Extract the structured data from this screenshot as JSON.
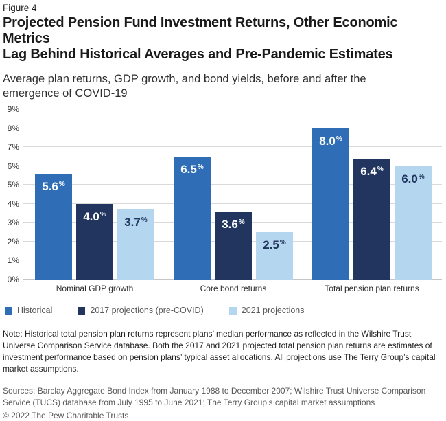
{
  "figure_label": "Figure 4",
  "header": {
    "title_lines": [
      "Projected Pension Fund Investment Returns, Other Economic Metrics",
      "Lag Behind Historical Averages and Pre-Pandemic Estimates"
    ],
    "subtitle_lines": [
      "Average plan returns, GDP growth, and bond yields, before and after the",
      "emergence of COVID-19"
    ]
  },
  "chart_data": {
    "type": "bar",
    "title": "Projected Pension Fund Investment Returns, Other Economic Metrics Lag Behind Historical Averages and Pre-Pandemic Estimates",
    "subtitle": "Average plan returns, GDP growth, and bond yields, before and after the emergence of COVID-19",
    "categories": [
      "Nominal GDP growth",
      "Core bond returns",
      "Total pension plan returns"
    ],
    "series": [
      {
        "name": "Historical",
        "color": "#2f6eb6",
        "label_color": "#ffffff",
        "values": [
          5.6,
          6.5,
          8.0
        ]
      },
      {
        "name": "2017 projections (pre-COVID)",
        "color": "#21355f",
        "label_color": "#ffffff",
        "values": [
          4.0,
          3.6,
          6.4
        ]
      },
      {
        "name": "2021 projections",
        "color": "#b5d6ef",
        "label_color": "#21355f",
        "values": [
          3.7,
          2.5,
          6.0
        ]
      }
    ],
    "value_suffix": "%",
    "value_decimals": 1,
    "y_axis": {
      "min": 0,
      "max": 9,
      "step": 1,
      "tick_suffix": "%"
    },
    "grid": true,
    "legend_position": "bottom-left"
  },
  "note": "Note: Historical total pension plan returns represent plans’ median performance as reflected in the Wilshire Trust Universe Comparison Service database. Both the 2017 and 2021 projected total pension plan returns are estimates of investment performance based on pension plans’ typical asset allocations. All projections use The Terry Group’s capital market assumptions.",
  "sources": "Sources: Barclay Aggregate Bond Index from January 1988 to December 2007; Wilshire Trust Universe Comparison Service (TUCS) database from July 1995 to June 2021; The Terry Group’s capital market assumptions",
  "copyright": "© 2022 The Pew Charitable Trusts"
}
